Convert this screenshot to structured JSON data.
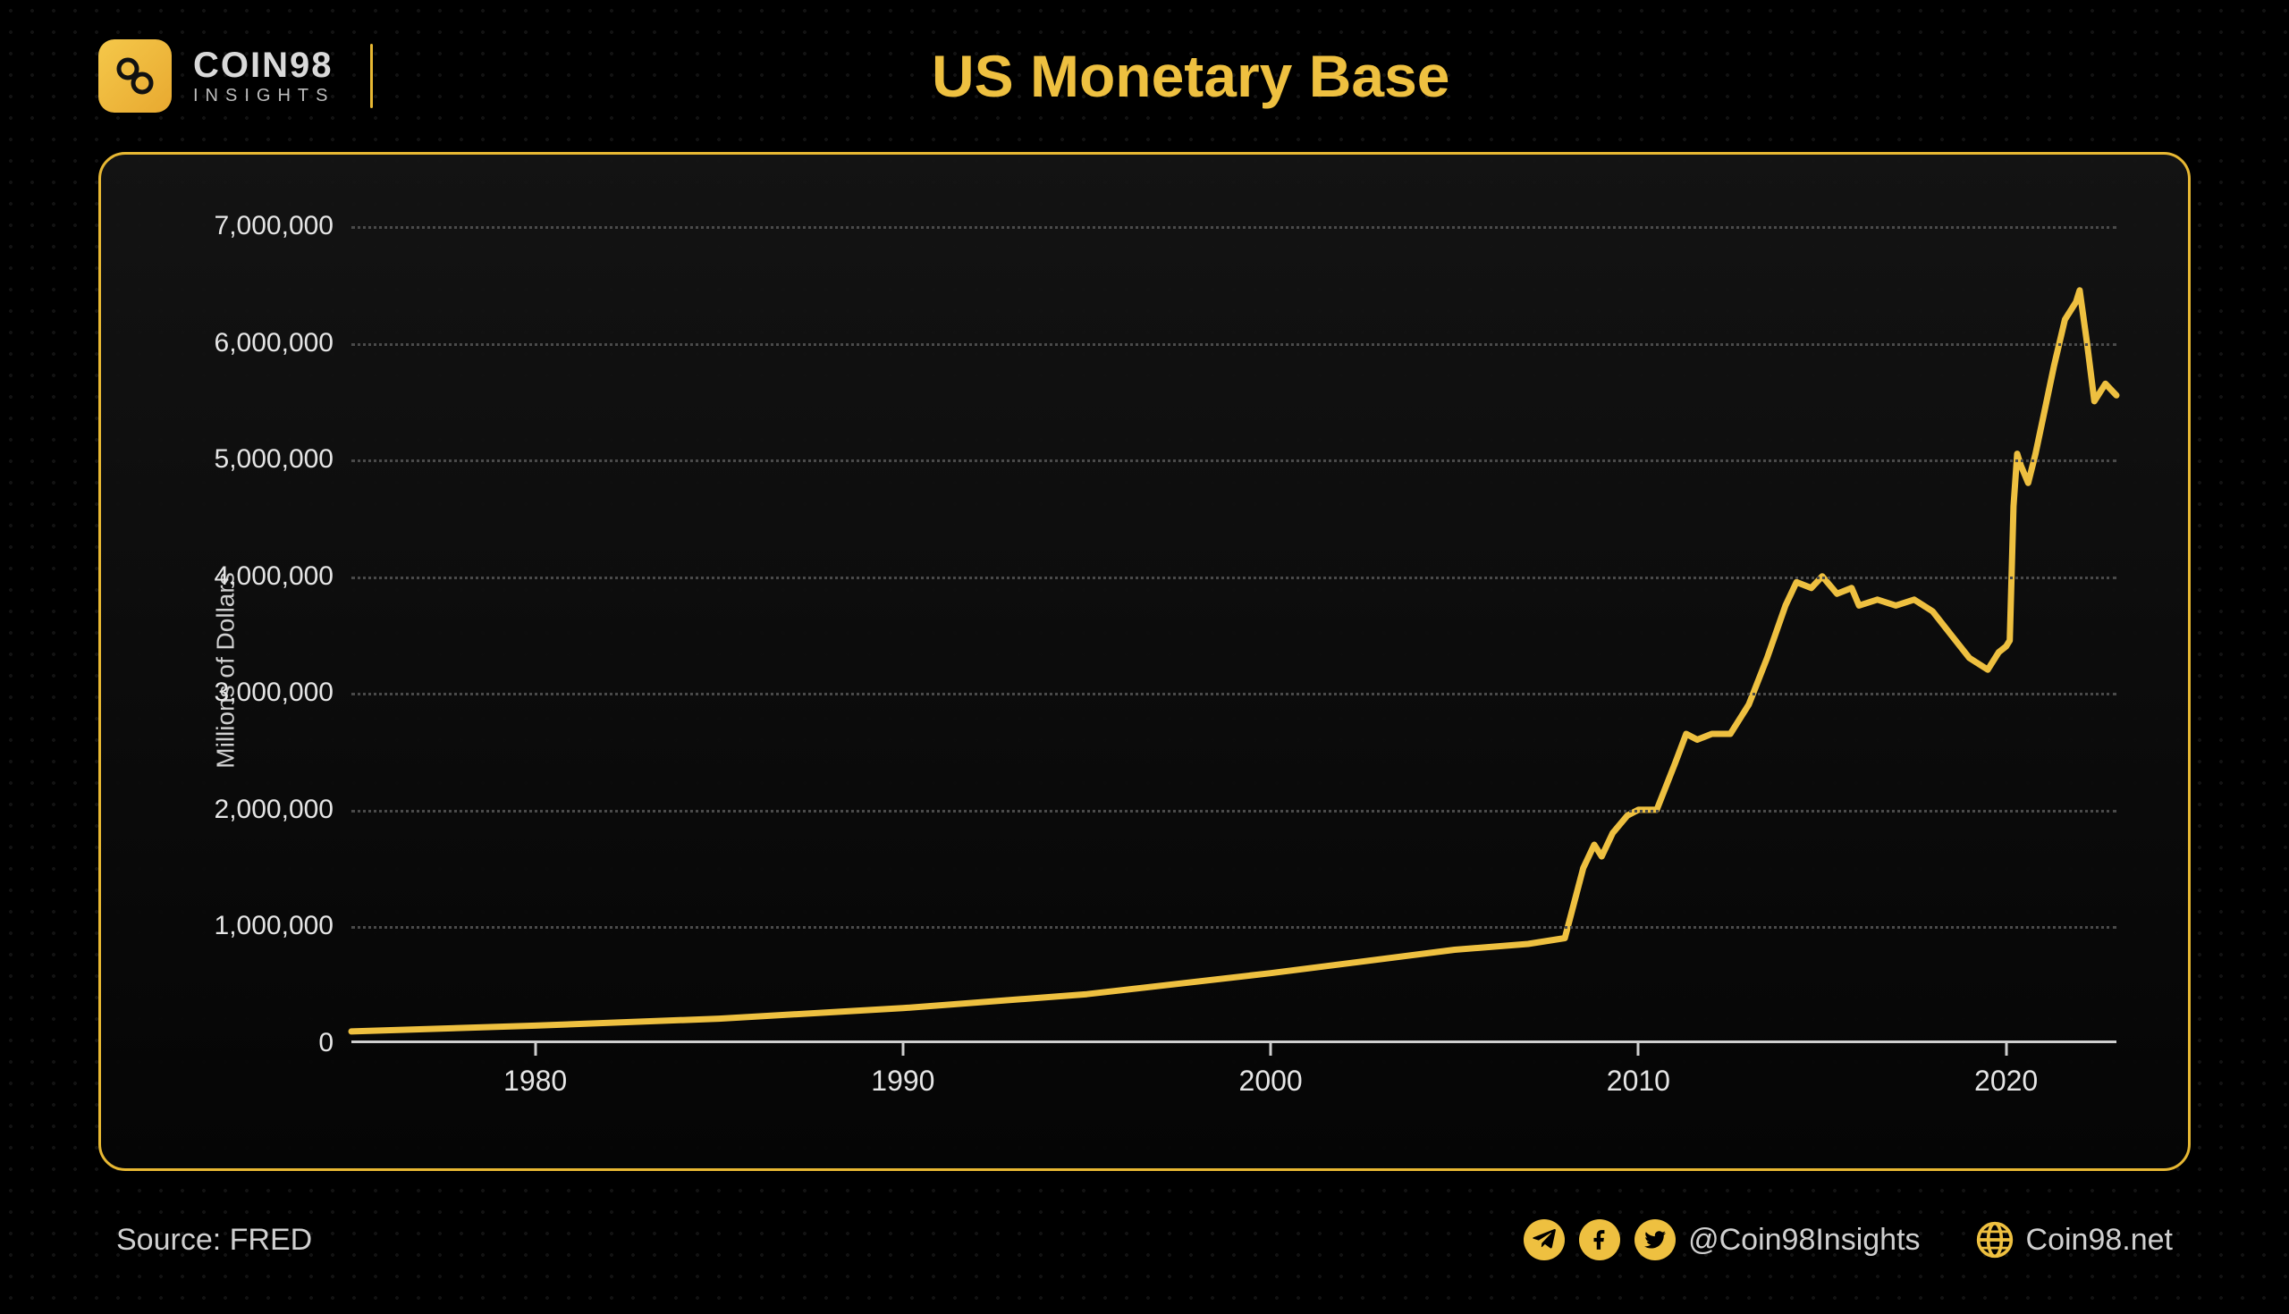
{
  "brand": {
    "name": "COIN98",
    "sub": "INSIGHTS"
  },
  "title": "US Monetary Base",
  "chart": {
    "type": "line",
    "y_label": "Millions of Dollars",
    "line_color": "#eec040",
    "line_width": 7,
    "grid_color": "#4a4a4a",
    "axis_color": "#cfcfcf",
    "background": "#0a0a0a",
    "x_domain": [
      1975,
      2023
    ],
    "y_domain": [
      0,
      7000000
    ],
    "y_ticks": [
      0,
      1000000,
      2000000,
      3000000,
      4000000,
      5000000,
      6000000,
      7000000
    ],
    "y_tick_labels": [
      "0",
      "1,000,000",
      "2,000,000",
      "3,000,000",
      "4,000,000",
      "5,000,000",
      "6,000,000",
      "7,000,000"
    ],
    "x_ticks": [
      1980,
      1990,
      2000,
      2010,
      2020
    ],
    "x_tick_labels": [
      "1980",
      "1990",
      "2000",
      "2010",
      "2020"
    ],
    "series": [
      {
        "x": 1975,
        "y": 100000
      },
      {
        "x": 1980,
        "y": 150000
      },
      {
        "x": 1985,
        "y": 210000
      },
      {
        "x": 1990,
        "y": 300000
      },
      {
        "x": 1995,
        "y": 420000
      },
      {
        "x": 2000,
        "y": 600000
      },
      {
        "x": 2005,
        "y": 800000
      },
      {
        "x": 2007,
        "y": 850000
      },
      {
        "x": 2008,
        "y": 900000
      },
      {
        "x": 2008.5,
        "y": 1500000
      },
      {
        "x": 2008.8,
        "y": 1700000
      },
      {
        "x": 2009,
        "y": 1600000
      },
      {
        "x": 2009.3,
        "y": 1800000
      },
      {
        "x": 2009.7,
        "y": 1950000
      },
      {
        "x": 2010,
        "y": 2000000
      },
      {
        "x": 2010.5,
        "y": 2000000
      },
      {
        "x": 2011,
        "y": 2400000
      },
      {
        "x": 2011.3,
        "y": 2650000
      },
      {
        "x": 2011.6,
        "y": 2600000
      },
      {
        "x": 2012,
        "y": 2650000
      },
      {
        "x": 2012.5,
        "y": 2650000
      },
      {
        "x": 2013,
        "y": 2900000
      },
      {
        "x": 2013.5,
        "y": 3300000
      },
      {
        "x": 2014,
        "y": 3750000
      },
      {
        "x": 2014.3,
        "y": 3950000
      },
      {
        "x": 2014.7,
        "y": 3900000
      },
      {
        "x": 2015,
        "y": 4000000
      },
      {
        "x": 2015.4,
        "y": 3850000
      },
      {
        "x": 2015.8,
        "y": 3900000
      },
      {
        "x": 2016,
        "y": 3750000
      },
      {
        "x": 2016.5,
        "y": 3800000
      },
      {
        "x": 2017,
        "y": 3750000
      },
      {
        "x": 2017.5,
        "y": 3800000
      },
      {
        "x": 2018,
        "y": 3700000
      },
      {
        "x": 2018.5,
        "y": 3500000
      },
      {
        "x": 2019,
        "y": 3300000
      },
      {
        "x": 2019.5,
        "y": 3200000
      },
      {
        "x": 2019.8,
        "y": 3350000
      },
      {
        "x": 2020,
        "y": 3400000
      },
      {
        "x": 2020.1,
        "y": 3450000
      },
      {
        "x": 2020.2,
        "y": 4600000
      },
      {
        "x": 2020.3,
        "y": 5050000
      },
      {
        "x": 2020.4,
        "y": 4950000
      },
      {
        "x": 2020.6,
        "y": 4800000
      },
      {
        "x": 2020.8,
        "y": 5050000
      },
      {
        "x": 2021,
        "y": 5350000
      },
      {
        "x": 2021.3,
        "y": 5800000
      },
      {
        "x": 2021.6,
        "y": 6200000
      },
      {
        "x": 2021.9,
        "y": 6350000
      },
      {
        "x": 2022,
        "y": 6450000
      },
      {
        "x": 2022.2,
        "y": 6000000
      },
      {
        "x": 2022.4,
        "y": 5500000
      },
      {
        "x": 2022.7,
        "y": 5650000
      },
      {
        "x": 2023,
        "y": 5550000
      }
    ]
  },
  "footer": {
    "source_label": "Source: FRED",
    "handle": "@Coin98Insights",
    "site": "Coin98.net"
  }
}
